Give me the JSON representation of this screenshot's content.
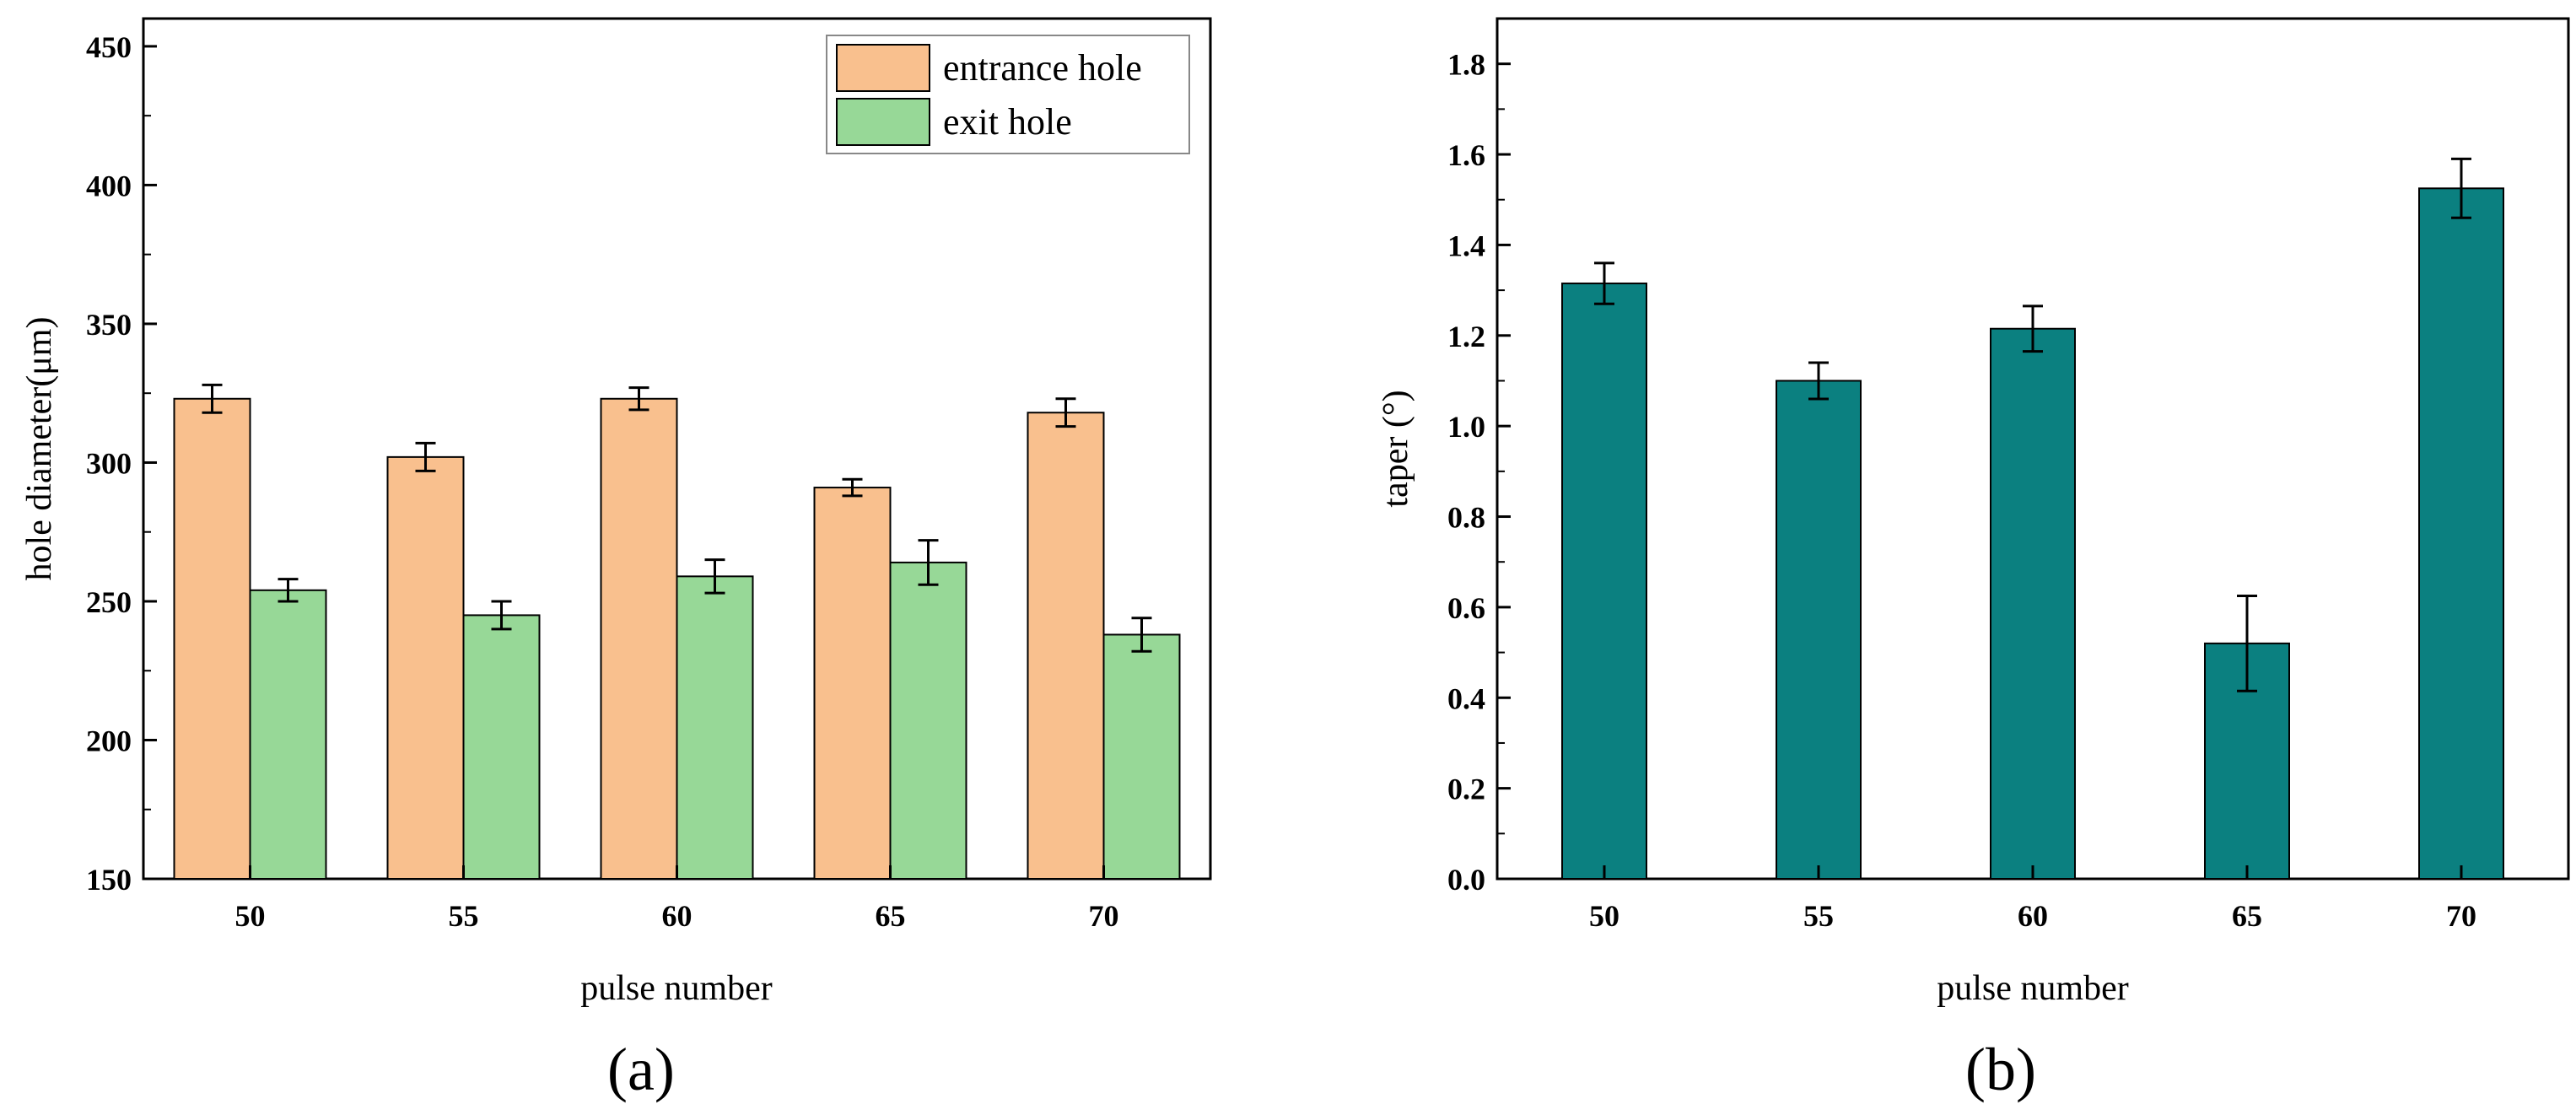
{
  "chart_data": [
    {
      "type": "bar",
      "panel_label": "(a)",
      "categories": [
        "50",
        "55",
        "60",
        "65",
        "70"
      ],
      "series": [
        {
          "name": "entrance hole",
          "color": "#f9c08e",
          "values": [
            323,
            302,
            323,
            291,
            318
          ],
          "errors": [
            5,
            5,
            4,
            3,
            5
          ]
        },
        {
          "name": "exit hole",
          "color": "#97d897",
          "values": [
            254,
            245,
            259,
            264,
            238
          ],
          "errors": [
            4,
            5,
            6,
            8,
            6
          ]
        }
      ],
      "xlabel": "pulse number",
      "ylabel": "hole diameter(μm)",
      "ylim": [
        150,
        460
      ],
      "yticks": [
        "150",
        "200",
        "250",
        "300",
        "350",
        "400",
        "450"
      ],
      "legend": "top-right",
      "grid": false
    },
    {
      "type": "bar",
      "panel_label": "(b)",
      "categories": [
        "50",
        "55",
        "60",
        "65",
        "70"
      ],
      "series": [
        {
          "name": "taper",
          "color": "#0b8080",
          "values": [
            1.315,
            1.1,
            1.215,
            0.52,
            1.525
          ],
          "errors": [
            0.045,
            0.04,
            0.05,
            0.105,
            0.065
          ]
        }
      ],
      "xlabel": "pulse number",
      "ylabel": "taper (°)",
      "ylim": [
        0,
        1.9
      ],
      "yticks": [
        "0.0",
        "0.2",
        "0.4",
        "0.6",
        "0.8",
        "1.0",
        "1.2",
        "1.4",
        "1.6",
        "1.8"
      ],
      "legend": "none",
      "grid": false
    }
  ]
}
